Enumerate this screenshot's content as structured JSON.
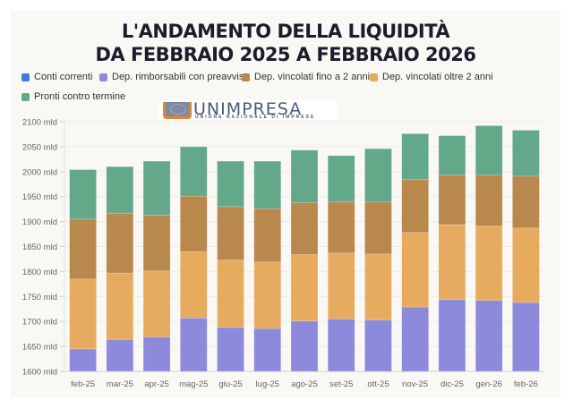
{
  "title_lines": [
    "L'ANDAMENTO DELLA LIQUIDITÀ",
    "DA FEBBRAIO 2025 A FEBBRAIO 2026"
  ],
  "logo": {
    "name": "UNIMPRESA",
    "subtitle": "UNIONE NAZIONALE DI IMPRESE"
  },
  "chart_data": {
    "type": "bar",
    "stacked": true,
    "title": "L'ANDAMENTO DELLA LIQUIDITÀ DA FEBBRAIO 2025 A FEBBRAIO 2026",
    "xlabel": "",
    "ylabel": "",
    "ylim": [
      1600,
      2100
    ],
    "y_ticks": [
      1600,
      1650,
      1700,
      1750,
      1800,
      1850,
      1900,
      1950,
      2000,
      2050,
      2100
    ],
    "y_tick_suffix": " mld",
    "grid": true,
    "legend_position": "top-left",
    "categories": [
      "feb-25",
      "mar-25",
      "apr-25",
      "mag-25",
      "giu-25",
      "lug-25",
      "ago-25",
      "set-25",
      "ott-25",
      "nov-25",
      "dic-25",
      "gen-26",
      "feb-26"
    ],
    "series": [
      {
        "name": "Conti correnti",
        "color": "#3b7dd8",
        "cumulative_top": null,
        "values": null
      },
      {
        "name": "Dep. rimborsabili con preavviso",
        "color": "#8e8adb",
        "cumulative_top": [
          1645,
          1664,
          1669,
          1707,
          1688,
          1686,
          1701,
          1705,
          1703,
          1729,
          1744,
          1742,
          1738
        ]
      },
      {
        "name": "Dep. vincolati oltre 2 anni",
        "color": "#e6ab5e",
        "cumulative_top": [
          1785,
          1797,
          1801,
          1840,
          1823,
          1819,
          1834,
          1837,
          1835,
          1878,
          1894,
          1891,
          1887
        ]
      },
      {
        "name": "Dep. vincolati fino a 2 anni",
        "color": "#b8884d",
        "cumulative_top": [
          1905,
          1917,
          1913,
          1951,
          1930,
          1926,
          1938,
          1940,
          1939,
          1984,
          1993,
          1993,
          1991
        ]
      },
      {
        "name": "Pronti contro termine",
        "color": "#63a889",
        "cumulative_top": [
          2004,
          2010,
          2021,
          2050,
          2021,
          2021,
          2043,
          2032,
          2046,
          2076,
          2072,
          2092,
          2083
        ]
      }
    ],
    "stack_order_bottom_to_top": [
      "Dep. rimborsabili con preavviso",
      "Dep. vincolati oltre 2 anni",
      "Dep. vincolati fino a 2 anni",
      "Pronti contro termine"
    ]
  },
  "legend": [
    {
      "label": "Conti correnti",
      "color": "#3b7dd8"
    },
    {
      "label": "Dep. rimborsabili con preavviso",
      "color": "#8e8adb"
    },
    {
      "label": "Dep. vincolati fino a 2 anni",
      "color": "#b8884d"
    },
    {
      "label": "Dep. vincolati oltre 2 anni",
      "color": "#e6ab5e"
    },
    {
      "label": "Pronti contro termine",
      "color": "#63a889"
    }
  ]
}
